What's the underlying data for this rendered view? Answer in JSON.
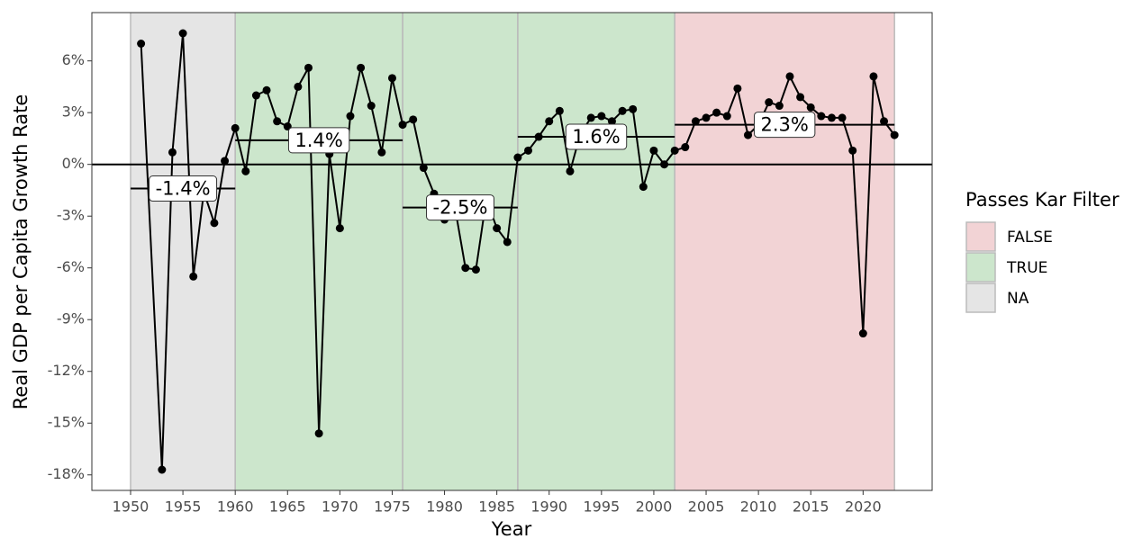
{
  "chart_data": {
    "type": "line",
    "x_label": "Year",
    "y_label": "Real GDP per Capita Growth Rate",
    "xlim": [
      1946.3,
      2026.6
    ],
    "ylim": [
      -18.9,
      8.8
    ],
    "xticks": [
      1950,
      1955,
      1960,
      1965,
      1970,
      1975,
      1980,
      1985,
      1990,
      1995,
      2000,
      2005,
      2010,
      2015,
      2020
    ],
    "yticks": [
      {
        "value": -18,
        "label": "-18%"
      },
      {
        "value": -15,
        "label": "-15%"
      },
      {
        "value": -12,
        "label": "-12%"
      },
      {
        "value": -9,
        "label": "-9%"
      },
      {
        "value": -6,
        "label": "-6%"
      },
      {
        "value": -3,
        "label": "-3%"
      },
      {
        "value": 0,
        "label": "0%"
      },
      {
        "value": 3,
        "label": "3%"
      },
      {
        "value": 6,
        "label": "6%"
      }
    ],
    "reference_line": 0,
    "series": [
      {
        "color": "#000000",
        "x": [
          1951,
          1953,
          1954,
          1955,
          1956,
          1957,
          1958,
          1959,
          1960,
          1961,
          1962,
          1963,
          1964,
          1965,
          1966,
          1967,
          1968,
          1969,
          1970,
          1971,
          1972,
          1973,
          1974,
          1975,
          1976,
          1977,
          1978,
          1979,
          1980,
          1981,
          1982,
          1983,
          1984,
          1985,
          1986,
          1987,
          1988,
          1989,
          1990,
          1991,
          1992,
          1993,
          1994,
          1995,
          1996,
          1997,
          1998,
          1999,
          2000,
          2001,
          2002,
          2003,
          2004,
          2005,
          2006,
          2007,
          2008,
          2009,
          2010,
          2011,
          2012,
          2013,
          2014,
          2015,
          2016,
          2017,
          2018,
          2019,
          2020,
          2021,
          2022,
          2023
        ],
        "values": [
          7.0,
          -17.7,
          0.7,
          7.6,
          -6.5,
          -1.6,
          -3.4,
          0.2,
          2.1,
          -0.4,
          4.0,
          4.3,
          2.5,
          2.2,
          4.5,
          5.6,
          -15.6,
          0.6,
          -3.7,
          2.8,
          5.6,
          3.4,
          0.7,
          5.0,
          2.3,
          2.6,
          -0.2,
          -1.7,
          -3.2,
          -2.5,
          -6.0,
          -6.1,
          -2.0,
          -3.7,
          -4.5,
          0.4,
          0.8,
          1.6,
          2.5,
          3.1,
          -0.4,
          1.8,
          2.7,
          2.8,
          2.5,
          3.1,
          3.2,
          -1.3,
          0.8,
          0.0,
          0.8,
          1.0,
          2.5,
          2.7,
          3.0,
          2.8,
          4.4,
          1.7,
          2.3,
          3.6,
          3.4,
          5.1,
          3.9,
          3.3,
          2.8,
          2.7,
          2.7,
          0.8,
          -9.8,
          5.1,
          2.5,
          1.7
        ]
      }
    ],
    "periods": [
      {
        "start": 1950,
        "end": 1960,
        "color": "#e5e5e5",
        "mean": -1.4,
        "mean_label": "-1.4%"
      },
      {
        "start": 1960,
        "end": 1976,
        "color": "#cce6cc",
        "mean": 1.4,
        "mean_label": "1.4%"
      },
      {
        "start": 1976,
        "end": 1987,
        "color": "#cce6cc",
        "mean": -2.5,
        "mean_label": "-2.5%"
      },
      {
        "start": 1987,
        "end": 2002,
        "color": "#cce6cc",
        "mean": 1.6,
        "mean_label": "1.6%"
      },
      {
        "start": 2002,
        "end": 2023,
        "color": "#f2d3d5",
        "mean": 2.3,
        "mean_label": "2.3%"
      }
    ],
    "legend": {
      "title": "Passes Kar Filter",
      "items": [
        {
          "label": "FALSE",
          "color": "#f2d3d5"
        },
        {
          "label": "TRUE",
          "color": "#cce6cc"
        },
        {
          "label": "NA",
          "color": "#e5e5e5"
        }
      ]
    }
  }
}
